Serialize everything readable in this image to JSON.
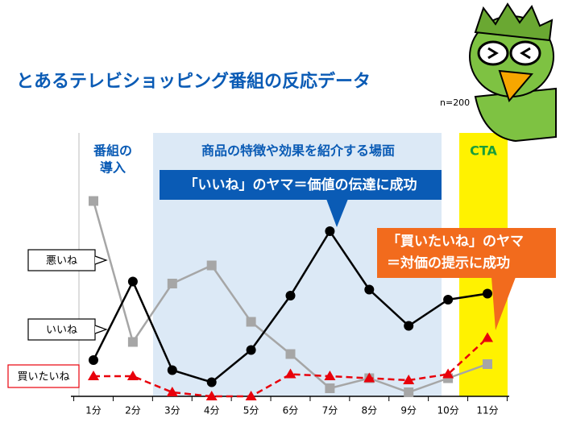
{
  "chart_data": {
    "type": "line",
    "title": "とあるテレビショッピング番組の反応データ",
    "subtitle": "n=200",
    "categories": [
      "1分",
      "2分",
      "3分",
      "4分",
      "5分",
      "6分",
      "7分",
      "8分",
      "9分",
      "10分",
      "11分"
    ],
    "series": [
      {
        "name": "悪いね",
        "color": "#a6a6a6",
        "marker": "square",
        "dash": false,
        "values": [
          97,
          27,
          56,
          65,
          37,
          21,
          4,
          9,
          2,
          9,
          16
        ]
      },
      {
        "name": "いいね",
        "color": "#000000",
        "marker": "circle",
        "dash": false,
        "values": [
          18,
          57,
          13,
          7,
          23,
          50,
          82,
          53,
          35,
          48,
          51
        ]
      },
      {
        "name": "買いたいね",
        "color": "#e8000b",
        "marker": "triangle",
        "dash": true,
        "values": [
          10,
          10,
          2,
          0,
          0,
          11,
          10,
          9,
          8,
          11,
          29
        ]
      }
    ],
    "ylim": [
      0,
      100
    ],
    "phases": [
      {
        "lines": [
          "番組の",
          "導入"
        ]
      },
      {
        "lines": [
          "商品の特徴や効果を紹介する場面"
        ]
      },
      {
        "lines": [
          "CTA"
        ]
      }
    ],
    "callouts": [
      {
        "lines": [
          "「いいね」のヤマ＝価値の伝達に成功"
        ]
      },
      {
        "lines": [
          "「買いたいね」のヤマ",
          "＝対価の提示に成功"
        ]
      }
    ]
  }
}
